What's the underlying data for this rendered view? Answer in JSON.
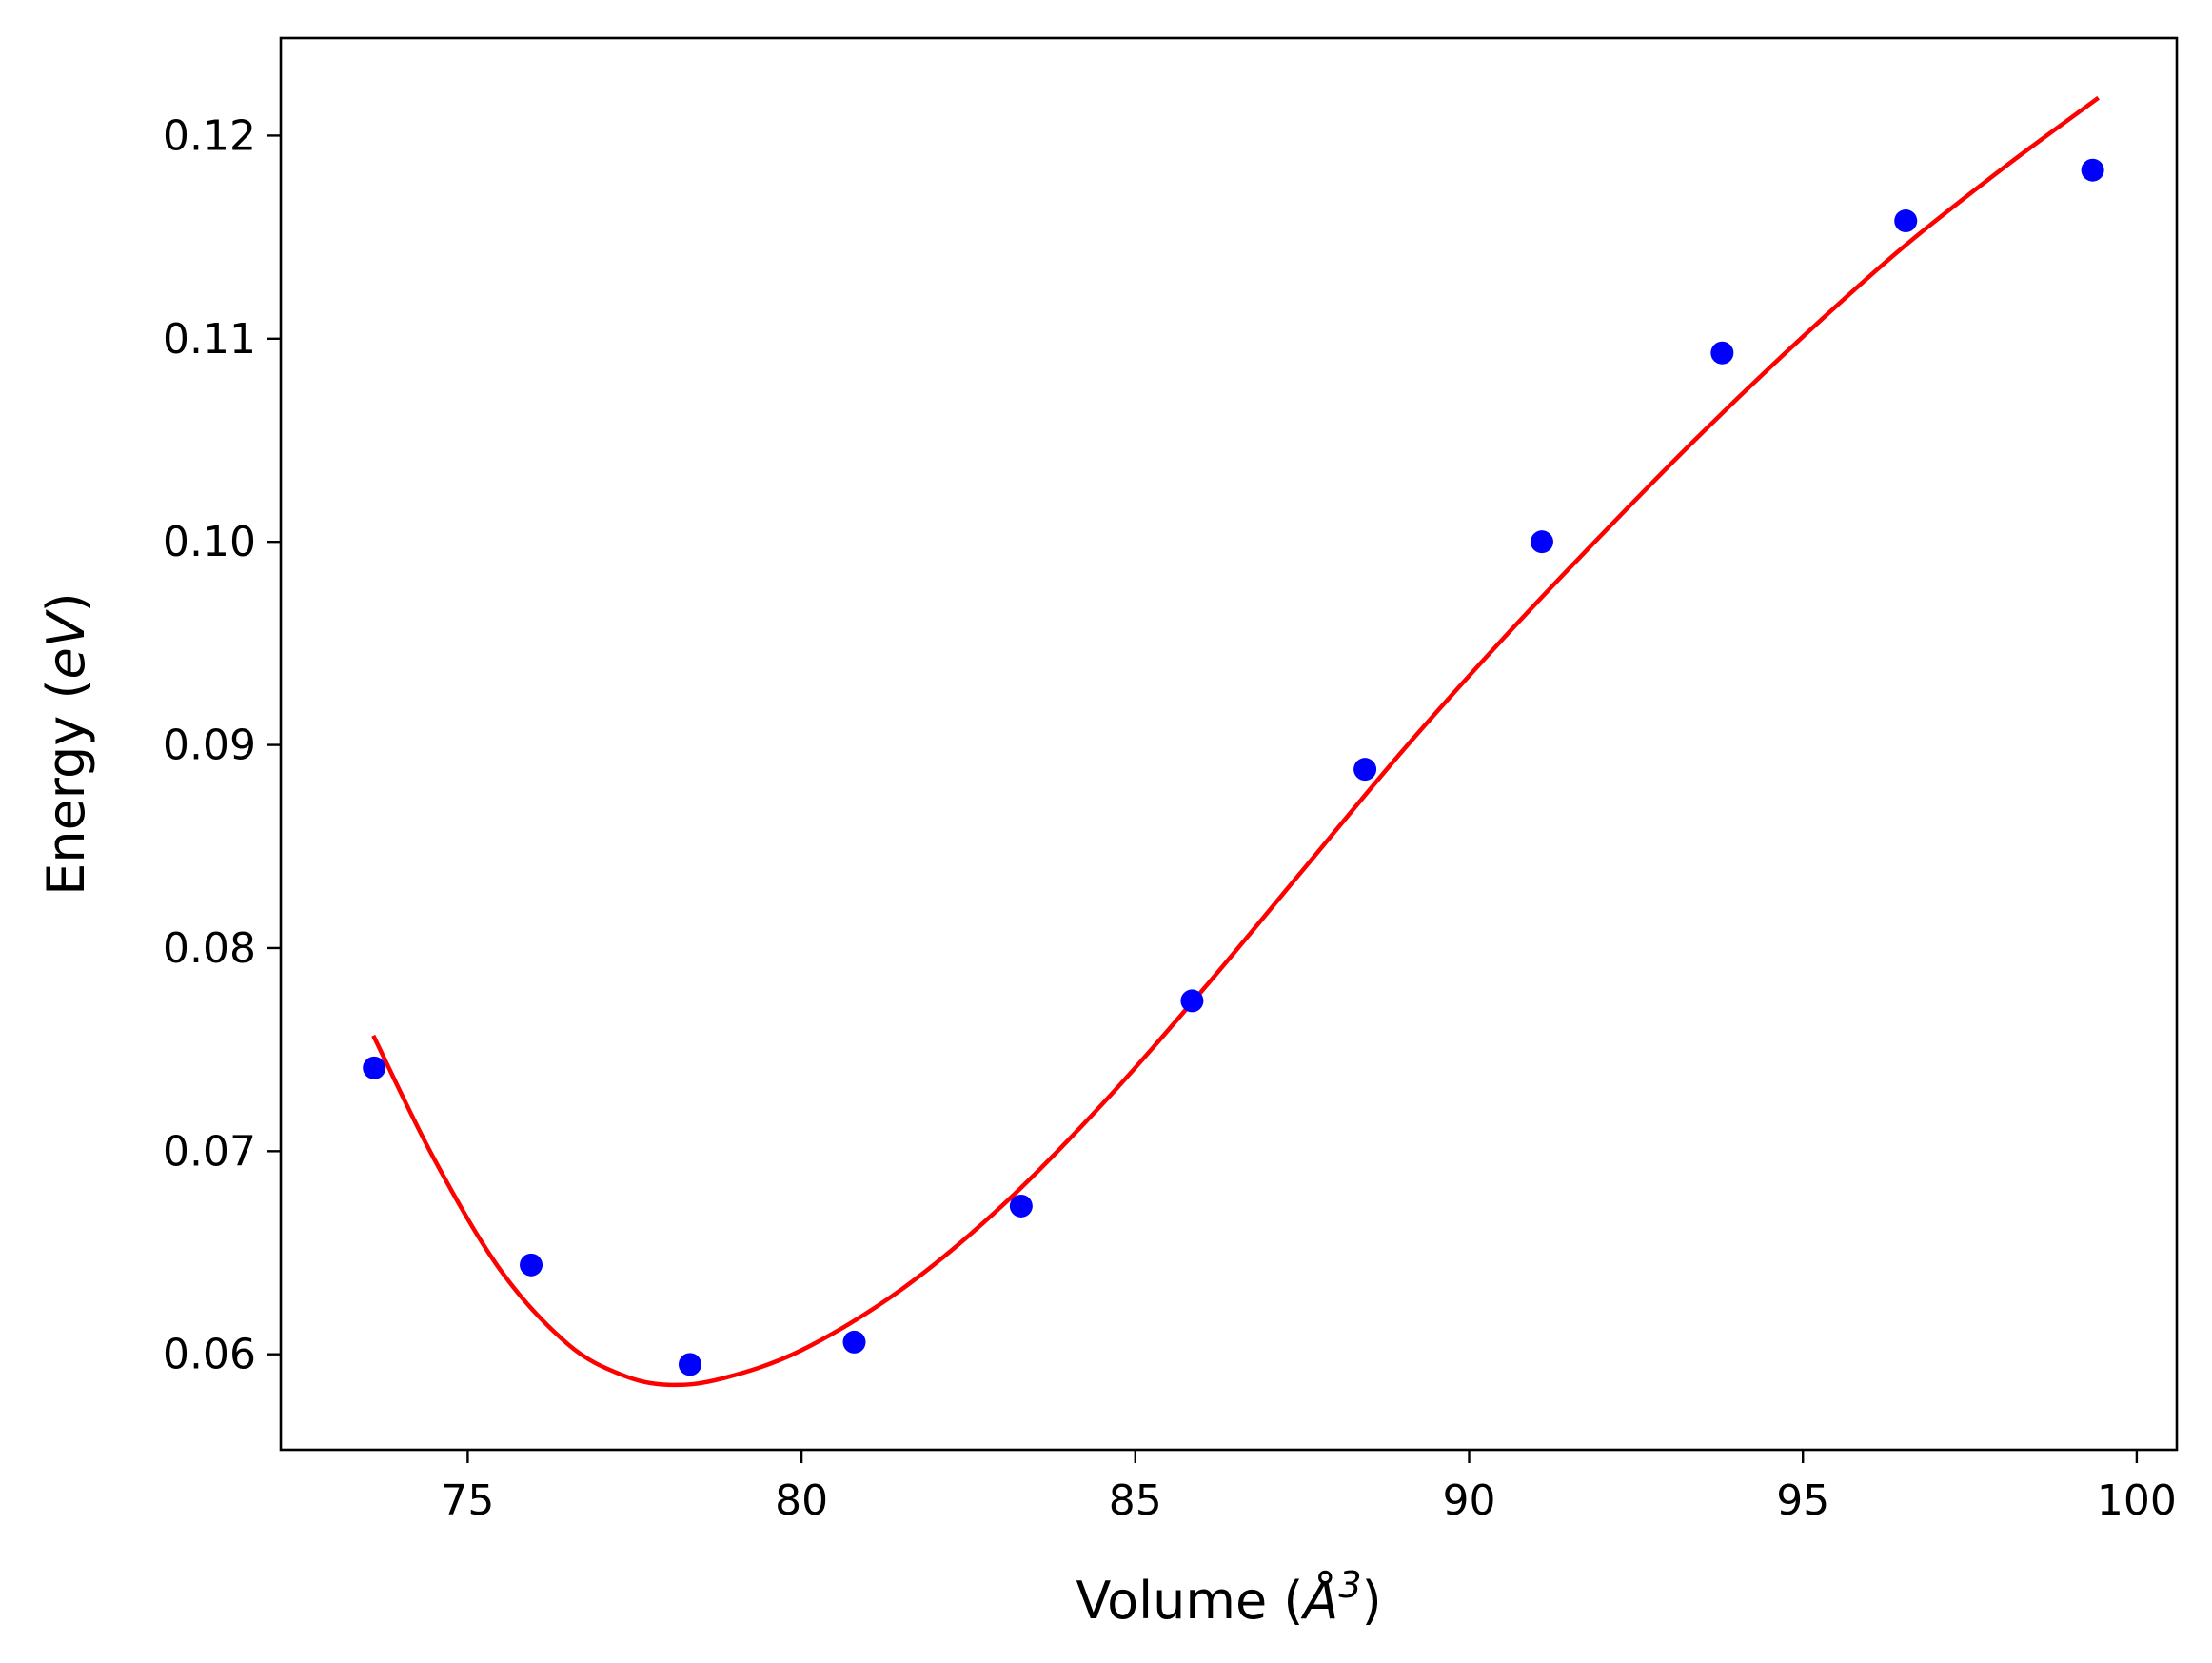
{
  "chart_data": {
    "type": "scatter",
    "title": "",
    "xlabel": "Volume (Å³)",
    "ylabel": "Energy (eV)",
    "xlabel_parts": {
      "prefix": "Volume (",
      "symbol": "Å",
      "exponent": "3",
      "suffix": ")"
    },
    "ylabel_parts": {
      "prefix": "Energy (",
      "unit": "eV",
      "suffix": ")"
    },
    "xlim": [
      72.2,
      100.6
    ],
    "ylim": [
      0.0553,
      0.1248
    ],
    "xticks": [
      75,
      80,
      85,
      90,
      95,
      100
    ],
    "xtick_labels": [
      "75",
      "80",
      "85",
      "90",
      "95",
      "100"
    ],
    "yticks": [
      0.06,
      0.07,
      0.08,
      0.09,
      0.1,
      0.11,
      0.12
    ],
    "ytick_labels": [
      "0.06",
      "0.07",
      "0.08",
      "0.09",
      "0.10",
      "0.11",
      "0.12"
    ],
    "grid": false,
    "legend": "none",
    "series": [
      {
        "kind": "scatter",
        "color": "#0000ff",
        "x": [
          73.6,
          75.95,
          78.33,
          80.79,
          83.29,
          85.85,
          88.44,
          91.09,
          93.79,
          96.54,
          99.34
        ],
        "y": [
          0.0741,
          0.0644,
          0.0595,
          0.0606,
          0.0673,
          0.0774,
          0.0888,
          0.1,
          0.1093,
          0.1158,
          0.1183
        ]
      },
      {
        "kind": "line",
        "color": "#ff0000",
        "x": [
          73.6,
          74.5,
          75.5,
          76.5,
          77.3,
          78.0,
          78.8,
          80.0,
          81.5,
          83.0,
          84.5,
          86.0,
          87.5,
          89.0,
          90.5,
          92.0,
          93.5,
          95.0,
          96.5,
          98.0,
          99.4
        ],
        "y": [
          0.0756,
          0.0696,
          0.0641,
          0.0605,
          0.059,
          0.0585,
          0.0588,
          0.0602,
          0.0632,
          0.0673,
          0.0723,
          0.0779,
          0.0838,
          0.0897,
          0.0952,
          0.1004,
          0.1054,
          0.1101,
          0.1145,
          0.1184,
          0.1218
        ]
      }
    ]
  }
}
